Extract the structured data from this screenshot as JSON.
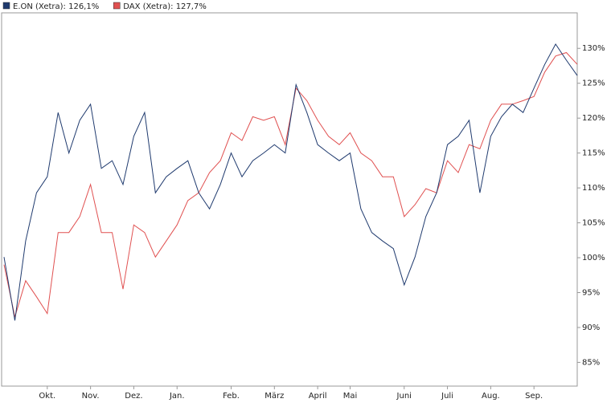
{
  "chart_data": {
    "type": "line",
    "categories": [
      null,
      null,
      null,
      null,
      "Okt.",
      null,
      null,
      null,
      "Nov.",
      null,
      null,
      null,
      "Dez.",
      null,
      null,
      null,
      "Jan.",
      null,
      null,
      null,
      null,
      "Feb.",
      null,
      null,
      null,
      "März",
      null,
      null,
      null,
      "April",
      null,
      null,
      "Mai",
      null,
      null,
      null,
      null,
      "Juni",
      null,
      null,
      null,
      "Juli",
      null,
      null,
      null,
      "Aug.",
      null,
      null,
      null,
      "Sep.",
      null,
      null,
      null,
      null
    ],
    "series": [
      {
        "name": "E.ON (Xetra): 126,1%",
        "color": "#1f3a6e",
        "values": [
          100.1,
          91,
          102.4,
          109.3,
          111.6,
          120.8,
          115,
          119.7,
          122,
          112.8,
          113.9,
          110.5,
          117.4,
          120.8,
          109.3,
          111.6,
          112.8,
          113.9,
          109.3,
          107,
          110.5,
          115,
          111.6,
          113.9,
          115,
          116.2,
          115,
          124.8,
          120.8,
          116.2,
          115,
          113.9,
          115,
          107,
          103.6,
          102.4,
          101.3,
          96.1,
          100.1,
          105.9,
          109.3,
          116.2,
          117.4,
          119.7,
          109.3,
          117.4,
          120.2,
          122,
          120.8,
          124.3,
          127.7,
          130.6,
          128.3,
          126.1
        ]
      },
      {
        "name": "DAX (Xetra): 127,7%",
        "color": "#e05050",
        "values": [
          99,
          91.5,
          96.7,
          94.4,
          92,
          103.6,
          103.6,
          105.9,
          110.5,
          103.6,
          103.6,
          95.5,
          104.7,
          103.6,
          100.1,
          102.4,
          104.7,
          108.2,
          109.3,
          112.2,
          113.9,
          117.9,
          116.8,
          120.2,
          119.7,
          120.2,
          116.2,
          124.3,
          122.5,
          119.7,
          117.4,
          116.2,
          117.9,
          115,
          113.9,
          111.6,
          111.6,
          105.9,
          107.6,
          109.9,
          109.3,
          113.9,
          112.2,
          116.2,
          115.6,
          119.7,
          122,
          122,
          122.5,
          123.1,
          126.6,
          128.9,
          129.4,
          127.7
        ]
      }
    ],
    "ylim": [
      81.6,
      136.7
    ],
    "yticks": [
      {
        "value": 85,
        "label": "85%"
      },
      {
        "value": 90,
        "label": "90%"
      },
      {
        "value": 95,
        "label": "95%"
      },
      {
        "value": 100,
        "label": "100%"
      },
      {
        "value": 105,
        "label": "105%"
      },
      {
        "value": 110,
        "label": "110%"
      },
      {
        "value": 115,
        "label": "115%"
      },
      {
        "value": 120,
        "label": "120%"
      },
      {
        "value": 125,
        "label": "125%"
      },
      {
        "value": 130,
        "label": "130%"
      }
    ],
    "legend": "top-left",
    "grid": false
  }
}
